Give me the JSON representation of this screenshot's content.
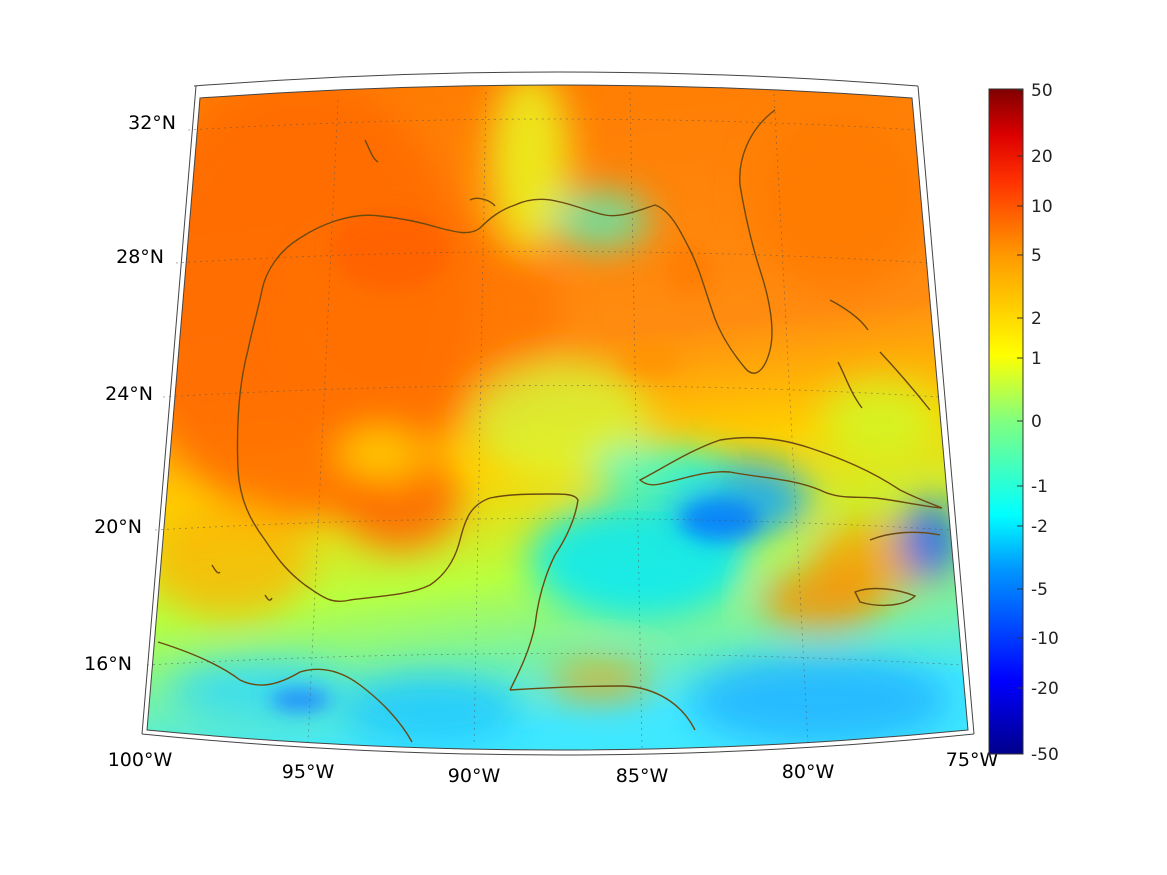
{
  "map": {
    "lon_labels": [
      "100°W",
      "95°W",
      "90°W",
      "85°W",
      "80°W",
      "75°W"
    ],
    "lat_labels": [
      "32°N",
      "28°N",
      "24°N",
      "20°N",
      "16°N"
    ],
    "coastline_color": "#6b4a10",
    "grid_style": "dotted",
    "colormap": "jet"
  },
  "colorbar": {
    "ticks": [
      "50",
      "20",
      "10",
      "5",
      "2",
      "1",
      "0",
      "-1",
      "-2",
      "-5",
      "-10",
      "-20",
      "-50"
    ],
    "top_color": "#800000",
    "bottom_color": "#00008b"
  }
}
